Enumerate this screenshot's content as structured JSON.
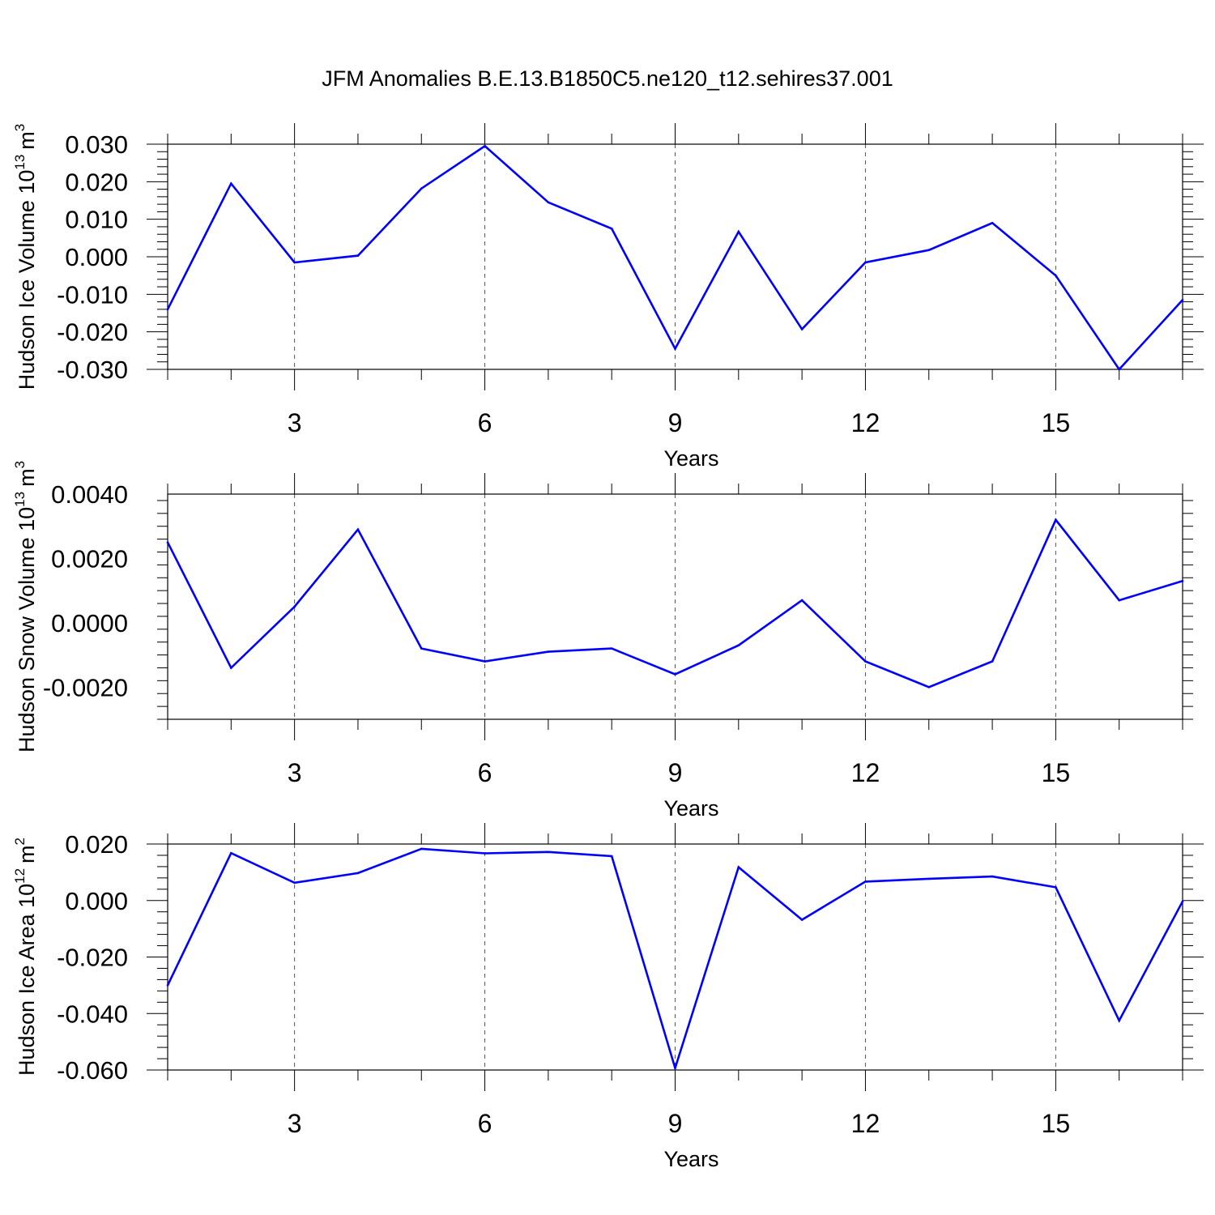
{
  "title": "JFM Anomalies B.E.13.B1850C5.ne120_t12.sehires37.001",
  "line_color": "#0000ff",
  "chart_data": [
    {
      "type": "line",
      "ylabel_main": "Hudson Ice Volume 10",
      "ylabel_exp": "13",
      "ylabel_unit": "m",
      "ylabel_unit_exp": "3",
      "xlabel": "Years",
      "xlim": [
        1,
        17
      ],
      "ylim": [
        -0.03,
        0.03
      ],
      "xticks": [
        3,
        6,
        9,
        12,
        15
      ],
      "xtick_labels": [
        "3",
        "6",
        "9",
        "12",
        "15"
      ],
      "yticks": [
        -0.03,
        -0.02,
        -0.01,
        0.0,
        0.01,
        0.02,
        0.03
      ],
      "ytick_labels": [
        "-0.030",
        "-0.020",
        "-0.010",
        "0.000",
        "0.010",
        "0.020",
        "0.030"
      ],
      "grid_x": "dashed at major x ticks",
      "x": [
        1,
        2,
        3,
        4,
        5,
        6,
        7,
        8,
        9,
        10,
        11,
        12,
        13,
        14,
        15,
        16,
        17
      ],
      "values": [
        -0.014,
        0.0195,
        -0.0015,
        0.0003,
        0.0182,
        0.0295,
        0.0145,
        0.0075,
        -0.0245,
        0.0067,
        -0.0193,
        -0.0015,
        0.0018,
        0.009,
        -0.005,
        -0.03,
        -0.0115
      ]
    },
    {
      "type": "line",
      "ylabel_main": "Hudson Snow Volume 10",
      "ylabel_exp": "13",
      "ylabel_unit": "m",
      "ylabel_unit_exp": "3",
      "xlabel": "Years",
      "xlim": [
        1,
        17
      ],
      "ylim": [
        -0.003,
        0.004
      ],
      "xticks": [
        3,
        6,
        9,
        12,
        15
      ],
      "xtick_labels": [
        "3",
        "6",
        "9",
        "12",
        "15"
      ],
      "yticks": [
        -0.002,
        0.0,
        0.002,
        0.004
      ],
      "ytick_labels": [
        "-0.0020",
        "0.0000",
        "0.0020",
        "0.0040"
      ],
      "grid_x": "dashed at major x ticks",
      "x": [
        1,
        2,
        3,
        4,
        5,
        6,
        7,
        8,
        9,
        10,
        11,
        12,
        13,
        14,
        15,
        16,
        17
      ],
      "values": [
        0.0025,
        -0.0014,
        0.0005,
        0.0029,
        -0.0008,
        -0.0012,
        -0.0009,
        -0.0008,
        -0.0016,
        -0.0007,
        0.0007,
        -0.0012,
        -0.002,
        -0.0012,
        0.0032,
        0.0007,
        0.0013
      ]
    },
    {
      "type": "line",
      "ylabel_main": "Hudson Ice Area 10",
      "ylabel_exp": "12",
      "ylabel_unit": "m",
      "ylabel_unit_exp": "2",
      "xlabel": "Years",
      "xlim": [
        1,
        17
      ],
      "ylim": [
        -0.06,
        0.02
      ],
      "xticks": [
        3,
        6,
        9,
        12,
        15
      ],
      "xtick_labels": [
        "3",
        "6",
        "9",
        "12",
        "15"
      ],
      "yticks": [
        -0.06,
        -0.04,
        -0.02,
        0.0,
        0.02
      ],
      "ytick_labels": [
        "-0.060",
        "-0.040",
        "-0.020",
        "0.000",
        "0.020"
      ],
      "grid_x": "dashed at major x ticks",
      "x": [
        1,
        2,
        3,
        4,
        5,
        6,
        7,
        8,
        9,
        10,
        11,
        12,
        13,
        14,
        15,
        16,
        17
      ],
      "values": [
        -0.03,
        0.0168,
        0.0063,
        0.0097,
        0.0183,
        0.0167,
        0.0172,
        0.0157,
        -0.0593,
        0.0118,
        -0.0068,
        0.0067,
        0.0077,
        0.0085,
        0.0047,
        -0.0425,
        -0.0003
      ]
    }
  ]
}
